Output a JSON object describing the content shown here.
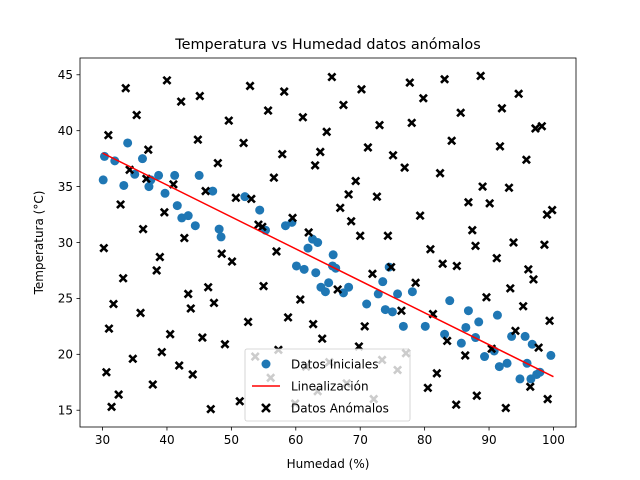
{
  "chart_data": {
    "type": "scatter",
    "title": "Temperatura vs Humedad datos anómalos",
    "xlabel": "Humedad (%)",
    "ylabel": "Temperatura (°C)",
    "xlim": [
      26.5,
      103.5
    ],
    "ylim": [
      13.5,
      46.5
    ],
    "xticks": [
      30,
      40,
      50,
      60,
      70,
      80,
      90,
      100
    ],
    "yticks": [
      15,
      20,
      25,
      30,
      35,
      40,
      45
    ],
    "grid": false,
    "legend_position": "bottom-center",
    "colors": {
      "initial": "#1f77b4",
      "fit": "#ff0000",
      "anomalous": "#000000"
    },
    "series": [
      {
        "name": "Datos Iniciales",
        "kind": "scatter",
        "marker": "circle",
        "x": [
          30.1,
          30.3,
          31.9,
          33.3,
          33.9,
          35.0,
          36.2,
          37.2,
          37.5,
          38.7,
          39.7,
          41.2,
          41.6,
          42.3,
          43.3,
          44.4,
          45.0,
          47.1,
          48.1,
          48.4,
          52.1,
          54.4,
          55.3,
          58.4,
          59.4,
          60.1,
          61.3,
          61.9,
          62.6,
          63.1,
          63.4,
          63.9,
          64.6,
          65.1,
          65.7,
          65.8,
          66.2,
          67.4,
          68.2,
          71.0,
          72.8,
          73.5,
          73.9,
          74.5,
          75.0,
          75.8,
          76.7,
          78.1,
          80.1,
          83.1,
          83.9,
          85.7,
          86.4,
          86.8,
          87.9,
          88.4,
          89.3,
          90.8,
          91.3,
          91.6,
          92.8,
          93.5,
          94.8,
          95.6,
          95.9,
          96.5,
          96.7,
          97.4,
          97.9,
          99.6
        ],
        "y": [
          35.6,
          37.7,
          37.3,
          35.1,
          38.9,
          36.1,
          37.5,
          35.0,
          35.6,
          36.0,
          34.4,
          36.0,
          33.3,
          32.2,
          32.4,
          31.5,
          36.0,
          34.6,
          31.2,
          30.5,
          34.1,
          32.9,
          31.1,
          31.5,
          31.8,
          27.9,
          27.6,
          29.5,
          30.3,
          27.3,
          30.0,
          26.0,
          25.6,
          26.4,
          27.9,
          28.9,
          27.7,
          25.5,
          26.0,
          24.5,
          25.4,
          26.5,
          24.0,
          27.8,
          23.8,
          25.4,
          22.5,
          25.6,
          22.5,
          21.8,
          24.8,
          21.0,
          22.4,
          23.9,
          21.5,
          22.9,
          19.8,
          20.3,
          23.5,
          18.9,
          19.2,
          21.6,
          17.8,
          21.6,
          19.2,
          17.8,
          20.9,
          18.2,
          18.4,
          19.9
        ]
      },
      {
        "name": "Linealización",
        "kind": "line",
        "x": [
          30,
          100
        ],
        "y": [
          38.0,
          18.0
        ]
      },
      {
        "name": "Datos Anómalos",
        "kind": "scatter",
        "marker": "x",
        "x": [
          31.4,
          32.5,
          37.8,
          44.0,
          46.8,
          51.3,
          56.1,
          59.9,
          63.4,
          67.9,
          72.1,
          75.8,
          80.5,
          84.9,
          88.1,
          92.6,
          96.4,
          99.1,
          30.6,
          34.7,
          39.2,
          41.9,
          45.5,
          49.0,
          53.7,
          57.3,
          61.6,
          65.2,
          69.8,
          73.4,
          77.1,
          81.9,
          86.3,
          90.4,
          94.1,
          97.7,
          31.0,
          35.9,
          40.5,
          47.3,
          52.6,
          58.8,
          64.1,
          70.7,
          76.4,
          83.5,
          89.6,
          95.3,
          99.4,
          33.2,
          38.4,
          43.3,
          50.1,
          55.0,
          60.7,
          66.5,
          71.9,
          78.6,
          85.0,
          91.2,
          96.9,
          30.2,
          36.3,
          42.7,
          48.5,
          54.2,
          62.0,
          68.6,
          74.3,
          80.9,
          87.4,
          93.8,
          98.6,
          32.8,
          39.6,
          46.0,
          53.1,
          59.5,
          66.9,
          72.6,
          79.3,
          86.8,
          93.1,
          99.8,
          34.2,
          41.0,
          47.9,
          56.6,
          63.0,
          69.3,
          75.1,
          82.4,
          89.0,
          95.8,
          30.9,
          37.1,
          44.8,
          51.9,
          57.9,
          64.8,
          71.2,
          78.0,
          84.2,
          91.7,
          97.2,
          35.3,
          42.2,
          49.6,
          55.7,
          61.1,
          67.4,
          73.0,
          79.8,
          85.6,
          92.0,
          98.2,
          33.6,
          40.0,
          45.1,
          52.9,
          58.2,
          65.6,
          70.2,
          77.7,
          83.1,
          88.7,
          94.6,
          31.7,
          38.9,
          46.4,
          54.8,
          62.7,
          68.2,
          74.8,
          81.3,
          87.9,
          93.3,
          99.0,
          36.8,
          43.7,
          50.7,
          57.0,
          63.8,
          70.0,
          76.9,
          82.8,
          90.1,
          96.1
        ],
        "y": [
          15.3,
          16.4,
          17.3,
          18.2,
          15.1,
          15.8,
          17.9,
          15.6,
          16.7,
          17.4,
          16.0,
          18.6,
          17.0,
          15.5,
          16.3,
          15.2,
          17.1,
          16.0,
          18.4,
          19.6,
          20.2,
          19.0,
          21.5,
          20.9,
          19.8,
          20.4,
          18.9,
          19.3,
          20.7,
          19.5,
          20.1,
          18.3,
          19.9,
          20.5,
          22.1,
          20.6,
          22.3,
          23.7,
          21.8,
          24.6,
          22.9,
          23.3,
          21.4,
          22.5,
          23.9,
          21.2,
          25.1,
          24.3,
          23.0,
          26.8,
          27.5,
          25.4,
          28.3,
          26.1,
          24.9,
          25.8,
          27.2,
          26.4,
          27.9,
          28.6,
          26.7,
          29.5,
          31.2,
          30.4,
          29.0,
          31.6,
          30.9,
          31.9,
          30.6,
          29.4,
          31.1,
          30.0,
          29.8,
          33.4,
          32.7,
          34.6,
          33.9,
          32.2,
          33.1,
          34.1,
          32.4,
          33.6,
          34.9,
          32.9,
          36.5,
          35.2,
          37.1,
          35.8,
          36.9,
          35.5,
          37.8,
          36.2,
          35.0,
          37.4,
          39.6,
          38.3,
          39.2,
          38.9,
          37.9,
          39.9,
          38.5,
          40.7,
          39.1,
          38.6,
          40.2,
          41.4,
          42.6,
          40.9,
          41.8,
          41.2,
          42.3,
          40.5,
          42.9,
          41.6,
          42.0,
          40.4,
          43.8,
          44.5,
          43.1,
          44.0,
          43.5,
          44.8,
          43.7,
          44.3,
          44.6,
          44.9,
          43.3,
          24.5,
          28.7,
          26.0,
          31.4,
          22.7,
          34.3,
          27.8,
          23.6,
          29.7,
          25.9,
          32.5,
          35.7,
          24.1,
          34.0,
          29.2,
          38.1,
          30.6,
          36.7,
          28.1,
          33.5,
          27.6
        ]
      }
    ],
    "legend": [
      "Datos Iniciales",
      "Linealización",
      "Datos Anómalos"
    ]
  }
}
